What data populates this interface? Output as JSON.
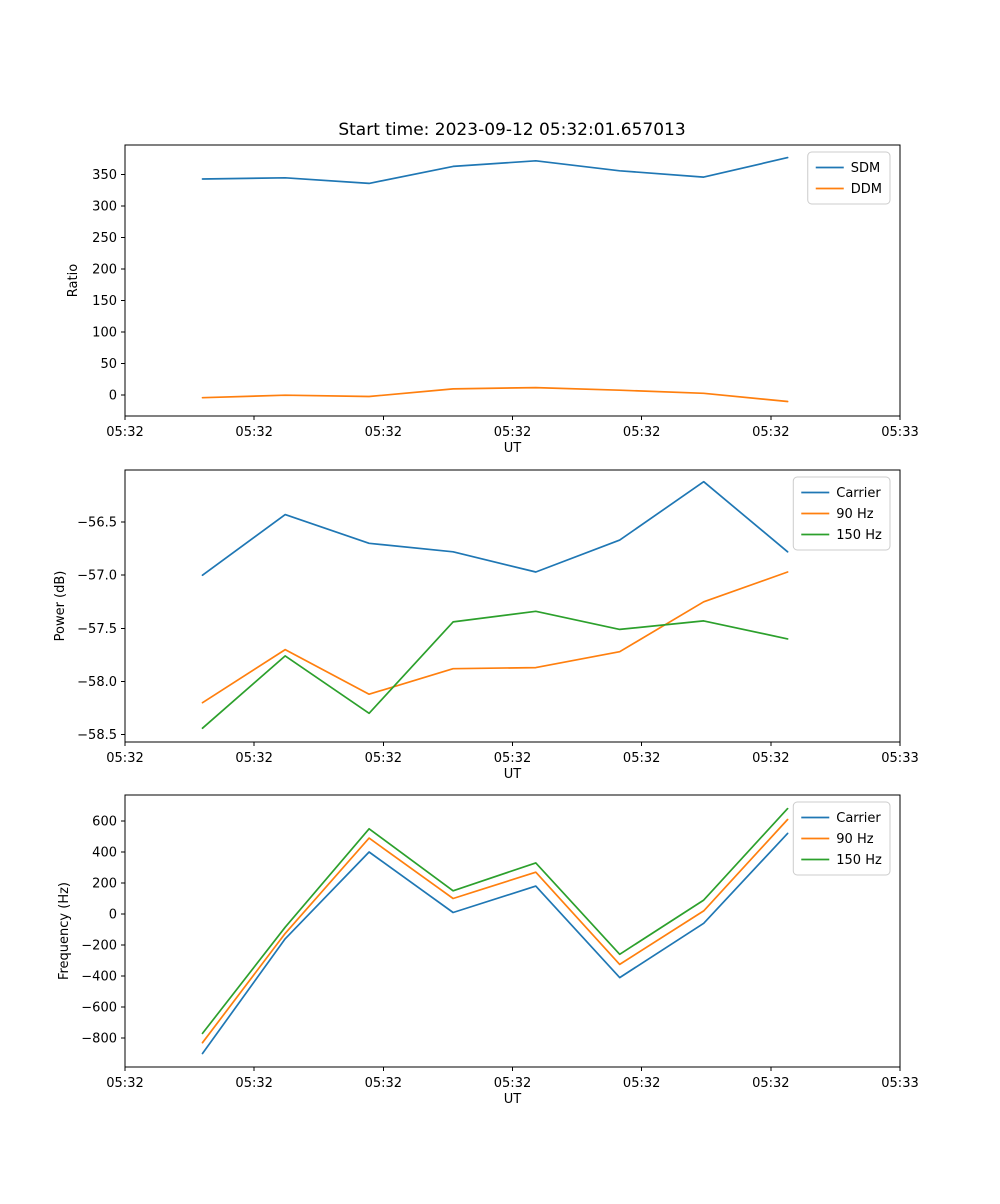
{
  "title": "Start time: 2023-09-12 05:32:01.657013",
  "colors": {
    "blue": "#1f77b4",
    "orange": "#ff7f0e",
    "green": "#2ca02c"
  },
  "chart_data": [
    {
      "type": "line",
      "id": "ratio",
      "title": "",
      "xlabel": "UT",
      "ylabel": "Ratio",
      "x_seconds": [
        6.0,
        12.4,
        18.9,
        25.4,
        31.8,
        38.3,
        44.8,
        51.3
      ],
      "xlim": [
        0,
        60
      ],
      "xticks": [
        0,
        10,
        20,
        30,
        40,
        50,
        60
      ],
      "xtick_labels": [
        "05:32",
        "05:32",
        "05:32",
        "05:32",
        "05:32",
        "05:32",
        "05:33"
      ],
      "ylim": [
        -33,
        397
      ],
      "yticks": [
        0,
        50,
        100,
        150,
        200,
        250,
        300,
        350
      ],
      "ytick_labels": [
        "0",
        "50",
        "100",
        "150",
        "200",
        "250",
        "300",
        "350"
      ],
      "grid": false,
      "legend_position": "upper right",
      "series": [
        {
          "name": "SDM",
          "color": "#1f77b4",
          "values": [
            343,
            345,
            336,
            363,
            372,
            356,
            346,
            377
          ]
        },
        {
          "name": "DDM",
          "color": "#ff7f0e",
          "values": [
            -4,
            0,
            -2,
            10,
            12,
            8,
            3,
            -10
          ]
        }
      ]
    },
    {
      "type": "line",
      "id": "power",
      "title": "",
      "xlabel": "UT",
      "ylabel": "Power (dB)",
      "x_seconds": [
        6.0,
        12.4,
        18.9,
        25.4,
        31.8,
        38.3,
        44.8,
        51.3
      ],
      "xlim": [
        0,
        60
      ],
      "xticks": [
        0,
        10,
        20,
        30,
        40,
        50,
        60
      ],
      "xtick_labels": [
        "05:32",
        "05:32",
        "05:32",
        "05:32",
        "05:32",
        "05:32",
        "05:33"
      ],
      "ylim": [
        -58.57,
        -56.01
      ],
      "yticks": [
        -58.5,
        -58.0,
        -57.5,
        -57.0,
        -56.5
      ],
      "ytick_labels": [
        "−58.5",
        "−58.0",
        "−57.5",
        "−57.0",
        "−56.5"
      ],
      "grid": false,
      "legend_position": "upper right",
      "series": [
        {
          "name": "Carrier",
          "color": "#1f77b4",
          "values": [
            -57.0,
            -56.43,
            -56.7,
            -56.78,
            -56.97,
            -56.67,
            -56.12,
            -56.78
          ]
        },
        {
          "name": "90 Hz",
          "color": "#ff7f0e",
          "values": [
            -58.2,
            -57.7,
            -58.12,
            -57.88,
            -57.87,
            -57.72,
            -57.25,
            -56.97
          ]
        },
        {
          "name": "150 Hz",
          "color": "#2ca02c",
          "values": [
            -58.44,
            -57.76,
            -58.3,
            -57.44,
            -57.34,
            -57.51,
            -57.43,
            -57.6
          ]
        }
      ]
    },
    {
      "type": "line",
      "id": "frequency",
      "title": "",
      "xlabel": "UT",
      "ylabel": "Frequency (Hz)",
      "x_seconds": [
        6.0,
        12.4,
        18.9,
        25.4,
        31.8,
        38.3,
        44.8,
        51.3
      ],
      "xlim": [
        0,
        60
      ],
      "xticks": [
        0,
        10,
        20,
        30,
        40,
        50,
        60
      ],
      "xtick_labels": [
        "05:32",
        "05:32",
        "05:32",
        "05:32",
        "05:32",
        "05:32",
        "05:33"
      ],
      "ylim": [
        -987,
        768
      ],
      "yticks": [
        -800,
        -600,
        -400,
        -200,
        0,
        200,
        400,
        600
      ],
      "ytick_labels": [
        "−800",
        "−600",
        "−400",
        "−200",
        "0",
        "200",
        "400",
        "600"
      ],
      "grid": false,
      "legend_position": "upper right",
      "series": [
        {
          "name": "Carrier",
          "color": "#1f77b4",
          "values": [
            -900,
            -160,
            400,
            10,
            180,
            -410,
            -60,
            520
          ]
        },
        {
          "name": "90 Hz",
          "color": "#ff7f0e",
          "values": [
            -830,
            -125,
            490,
            100,
            270,
            -325,
            20,
            610
          ]
        },
        {
          "name": "150 Hz",
          "color": "#2ca02c",
          "values": [
            -770,
            -85,
            550,
            150,
            330,
            -260,
            90,
            680
          ]
        }
      ]
    }
  ]
}
